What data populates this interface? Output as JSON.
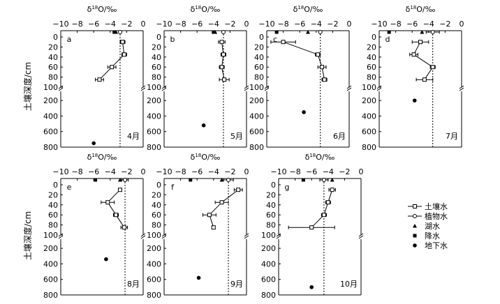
{
  "figure": {
    "title_axis_top": "δ18O/‰",
    "y_axis_label": "土壤深度/cm",
    "legend": [
      {
        "key": "soil",
        "label": "土壤水",
        "marker": "open-square"
      },
      {
        "key": "plant",
        "label": "植物水",
        "marker": "open-circle"
      },
      {
        "key": "lake",
        "label": "湖水",
        "marker": "filled-triangle"
      },
      {
        "key": "precip",
        "label": "降水",
        "marker": "filled-square"
      },
      {
        "key": "ground",
        "label": "地下水",
        "marker": "filled-circle"
      }
    ]
  },
  "chart_data": [
    {
      "type": "scatter",
      "panel": "a",
      "month": "4月",
      "xlim": [
        -10,
        0
      ],
      "xticks": [
        -10,
        -8,
        -6,
        -4,
        -2,
        0
      ],
      "yticks_upper": [
        0,
        20,
        40,
        60,
        80,
        100
      ],
      "yticks_lower": [
        200,
        400,
        600,
        800
      ],
      "soil_water": [
        {
          "depth": 10,
          "d18o": -2.5,
          "err": 0.3
        },
        {
          "depth": 35,
          "d18o": -2.3,
          "err": 0.3
        },
        {
          "depth": 60,
          "d18o": -3.8,
          "err": 0.5
        },
        {
          "depth": 85,
          "d18o": -5.3,
          "err": 0.5
        }
      ],
      "plant_water": {
        "d18o": -2.8
      },
      "lake_water": {
        "d18o": -3.3
      },
      "precipitation": {
        "d18o": -3.5
      },
      "groundwater": {
        "depth": 750,
        "d18o": -6.0
      },
      "reference_line": -2.8
    },
    {
      "type": "scatter",
      "panel": "b",
      "month": "5月",
      "xlim": [
        -10,
        0
      ],
      "xticks": [
        -10,
        -8,
        -6,
        -4,
        -2,
        0
      ],
      "yticks_upper": [
        0,
        20,
        40,
        60,
        80,
        100
      ],
      "yticks_lower": [
        200,
        400,
        600,
        800
      ],
      "soil_water": [
        {
          "depth": 10,
          "d18o": -3.0,
          "err": 0.4
        },
        {
          "depth": 35,
          "d18o": -2.8,
          "err": 0.3
        },
        {
          "depth": 60,
          "d18o": -3.0,
          "err": 0.3
        },
        {
          "depth": 85,
          "d18o": -2.7,
          "err": 0.6
        }
      ],
      "plant_water": {
        "d18o": -2.8
      },
      "lake_water": {
        "d18o": -3.8
      },
      "precipitation": {
        "d18o": -4.0
      },
      "groundwater": {
        "depth": 520,
        "d18o": -5.2
      },
      "reference_line": -2.8
    },
    {
      "type": "scatter",
      "panel": "c",
      "month": "6月",
      "xlim": [
        -10,
        0
      ],
      "xticks": [
        -10,
        -8,
        -6,
        -4,
        -2,
        0
      ],
      "yticks_upper": [
        0,
        20,
        40,
        60,
        80,
        100
      ],
      "yticks_lower": [
        200,
        400,
        600,
        800
      ],
      "soil_water": [
        {
          "depth": 10,
          "d18o": -8.0,
          "err": 1.5
        },
        {
          "depth": 35,
          "d18o": -3.8,
          "err": 0.3
        },
        {
          "depth": 60,
          "d18o": -3.3,
          "err": 0.5
        },
        {
          "depth": 85,
          "d18o": -3.0,
          "err": 0.3
        }
      ],
      "plant_water": {
        "d18o": -3.5
      },
      "lake_water": {
        "d18o": -5.0
      },
      "precipitation": {
        "d18o": -8.8
      },
      "groundwater": {
        "depth": 350,
        "d18o": -5.5
      },
      "reference_line": -3.5
    },
    {
      "type": "scatter",
      "panel": "d",
      "month": "7月",
      "xlim": [
        -10,
        0
      ],
      "xticks": [
        -10,
        -8,
        -6,
        -4,
        -2,
        0
      ],
      "yticks_upper": [
        0,
        20,
        40,
        60,
        80,
        100
      ],
      "yticks_lower": [
        200,
        400,
        600,
        800
      ],
      "soil_water": [
        {
          "depth": 10,
          "d18o": -5.0,
          "err": 1.0
        },
        {
          "depth": 35,
          "d18o": -5.8,
          "err": 0.5
        },
        {
          "depth": 60,
          "d18o": -3.5,
          "err": 0.3
        },
        {
          "depth": 85,
          "d18o": -4.5,
          "err": 1.0
        }
      ],
      "plant_water": {
        "d18o": -3.5,
        "err": 0.8
      },
      "lake_water": {
        "d18o": -4.8
      },
      "precipitation": {
        "d18o": -8.8
      },
      "groundwater": {
        "depth": 200,
        "d18o": -5.7
      },
      "reference_line": -3.5
    },
    {
      "type": "scatter",
      "panel": "e",
      "month": "8月",
      "xlim": [
        -10,
        0
      ],
      "xticks": [
        -10,
        -8,
        -6,
        -4,
        -2,
        0
      ],
      "yticks_upper": [
        0,
        20,
        40,
        60,
        80,
        100
      ],
      "yticks_lower": [
        200,
        400,
        600,
        800
      ],
      "soil_water": [
        {
          "depth": 10,
          "d18o": -2.8,
          "err": 0.2
        },
        {
          "depth": 35,
          "d18o": -4.3,
          "err": 0.8
        },
        {
          "depth": 60,
          "d18o": -3.3,
          "err": 0.3
        },
        {
          "depth": 85,
          "d18o": -2.3,
          "err": 0.4
        }
      ],
      "plant_water": {
        "d18o": -2.2,
        "err": 0.4
      },
      "lake_water": {
        "d18o": -2.8
      },
      "precipitation": {
        "d18o": -5.8
      },
      "groundwater": {
        "depth": 340,
        "d18o": -4.5
      },
      "reference_line": -2.2
    },
    {
      "type": "scatter",
      "panel": "f",
      "month": "9月",
      "xlim": [
        -10,
        0
      ],
      "xticks": [
        -10,
        -8,
        -6,
        -4,
        -2,
        0
      ],
      "yticks_upper": [
        0,
        20,
        40,
        60,
        80,
        100
      ],
      "yticks_lower": [
        200,
        400,
        600,
        800
      ],
      "soil_water": [
        {
          "depth": 10,
          "d18o": -1.0,
          "err": 0.5
        },
        {
          "depth": 35,
          "d18o": -3.0,
          "err": 0.8
        },
        {
          "depth": 60,
          "d18o": -4.5,
          "err": 0.8
        },
        {
          "depth": 85,
          "d18o": -4.0,
          "err": 0
        }
      ],
      "plant_water": {
        "d18o": -2.2,
        "err": 0.6
      },
      "lake_water": {
        "d18o": -3.0
      },
      "precipitation": {
        "d18o": -6.8
      },
      "groundwater": {
        "depth": 580,
        "d18o": -5.8
      },
      "reference_line": -2.2
    },
    {
      "type": "scatter",
      "panel": "g",
      "month": "10月",
      "xlim": [
        -10,
        0
      ],
      "xticks": [
        -10,
        -8,
        -6,
        -4,
        -2,
        0
      ],
      "yticks_upper": [
        0,
        20,
        40,
        60,
        80,
        100
      ],
      "yticks_lower": [
        200,
        400,
        600,
        800
      ],
      "soil_water": [
        {
          "depth": 10,
          "d18o": -3.5,
          "err": 0.4
        },
        {
          "depth": 35,
          "d18o": -4.0,
          "err": 0.3
        },
        {
          "depth": 60,
          "d18o": -4.5,
          "err": 0.3
        },
        {
          "depth": 85,
          "d18o": -6.0,
          "err": 2.8
        }
      ],
      "plant_water": {
        "d18o": -4.5,
        "err": 0.5
      },
      "lake_water": {
        "d18o": -3.5
      },
      "precipitation": {
        "d18o": -7.0
      },
      "groundwater": {
        "depth": 700,
        "d18o": -6.0
      },
      "reference_line": -4.5
    }
  ]
}
